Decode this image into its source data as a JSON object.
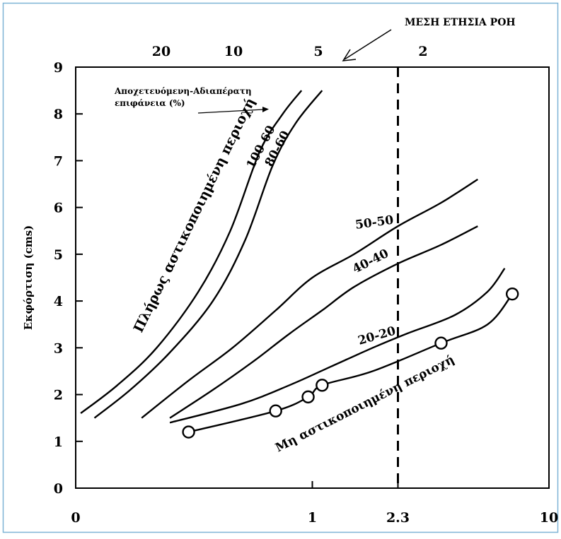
{
  "chart_data": {
    "type": "line",
    "ylabel": "Εκφόρτιση (cms)",
    "ylim": [
      0,
      9
    ],
    "yticks": [
      "0",
      "1",
      "2",
      "3",
      "4",
      "5",
      "6",
      "7",
      "8",
      "9"
    ],
    "x_axis_bottom": {
      "scale": "log",
      "ticks": [
        {
          "value": 0.1,
          "label": "0"
        },
        {
          "value": 1,
          "label": "1"
        },
        {
          "value": 2.3,
          "label": "2.3"
        },
        {
          "value": 10,
          "label": "10"
        }
      ]
    },
    "x_axis_top": {
      "ticks": [
        "20",
        "10",
        "5",
        "2"
      ],
      "values": [
        20,
        10,
        5,
        2
      ]
    },
    "mean_annual_flow": {
      "x": 2.3,
      "label": "ΜΕΣΗ ΕΤΗΣΙΑ ΡΟΗ"
    },
    "legend_note": {
      "line1": "Αποχετευόμενη-Αδιαπέρατη",
      "line2": "επιφάνεια (%)"
    },
    "group_labels": {
      "urbanized": "Πλήρως αστικοποιημένη περιοχή",
      "non_urban": "Μη αστικοποιημένη περιοχή"
    },
    "series": [
      {
        "name": "100-60",
        "x": [
          0.105,
          0.15,
          0.22,
          0.33,
          0.45,
          0.6,
          0.75,
          0.9
        ],
        "y": [
          1.6,
          2.2,
          3.0,
          4.2,
          5.5,
          7.2,
          8.0,
          8.5
        ]
      },
      {
        "name": "80-60",
        "x": [
          0.12,
          0.17,
          0.25,
          0.38,
          0.52,
          0.68,
          0.85,
          1.1
        ],
        "y": [
          1.5,
          2.1,
          2.9,
          4.0,
          5.3,
          6.9,
          7.8,
          8.5
        ]
      },
      {
        "name": "50-50",
        "x": [
          0.19,
          0.3,
          0.46,
          0.7,
          1.0,
          1.5,
          2.3,
          3.5,
          5.0
        ],
        "y": [
          1.5,
          2.3,
          3.0,
          3.8,
          4.5,
          5.0,
          5.6,
          6.1,
          6.6
        ]
      },
      {
        "name": "40-40",
        "x": [
          0.25,
          0.38,
          0.56,
          0.8,
          1.1,
          1.5,
          2.3,
          3.5,
          5.0
        ],
        "y": [
          1.5,
          2.1,
          2.7,
          3.3,
          3.8,
          4.3,
          4.8,
          5.2,
          5.6
        ]
      },
      {
        "name": "20-20",
        "x": [
          0.25,
          0.5,
          0.8,
          1.2,
          1.8,
          2.5,
          4.0,
          5.5,
          6.5
        ],
        "y": [
          1.4,
          1.8,
          2.2,
          2.6,
          3.0,
          3.3,
          3.7,
          4.2,
          4.7
        ]
      },
      {
        "name": "",
        "x": [
          0.3,
          0.7,
          0.96,
          1.1,
          1.8,
          3.5,
          5.5,
          7.0
        ],
        "y": [
          1.2,
          1.65,
          1.95,
          2.2,
          2.5,
          3.1,
          3.5,
          4.15
        ]
      }
    ],
    "markers": {
      "x": [
        0.3,
        0.7,
        0.96,
        1.1,
        3.5,
        7.0
      ],
      "y": [
        1.2,
        1.65,
        1.95,
        2.2,
        3.1,
        4.15
      ]
    }
  }
}
